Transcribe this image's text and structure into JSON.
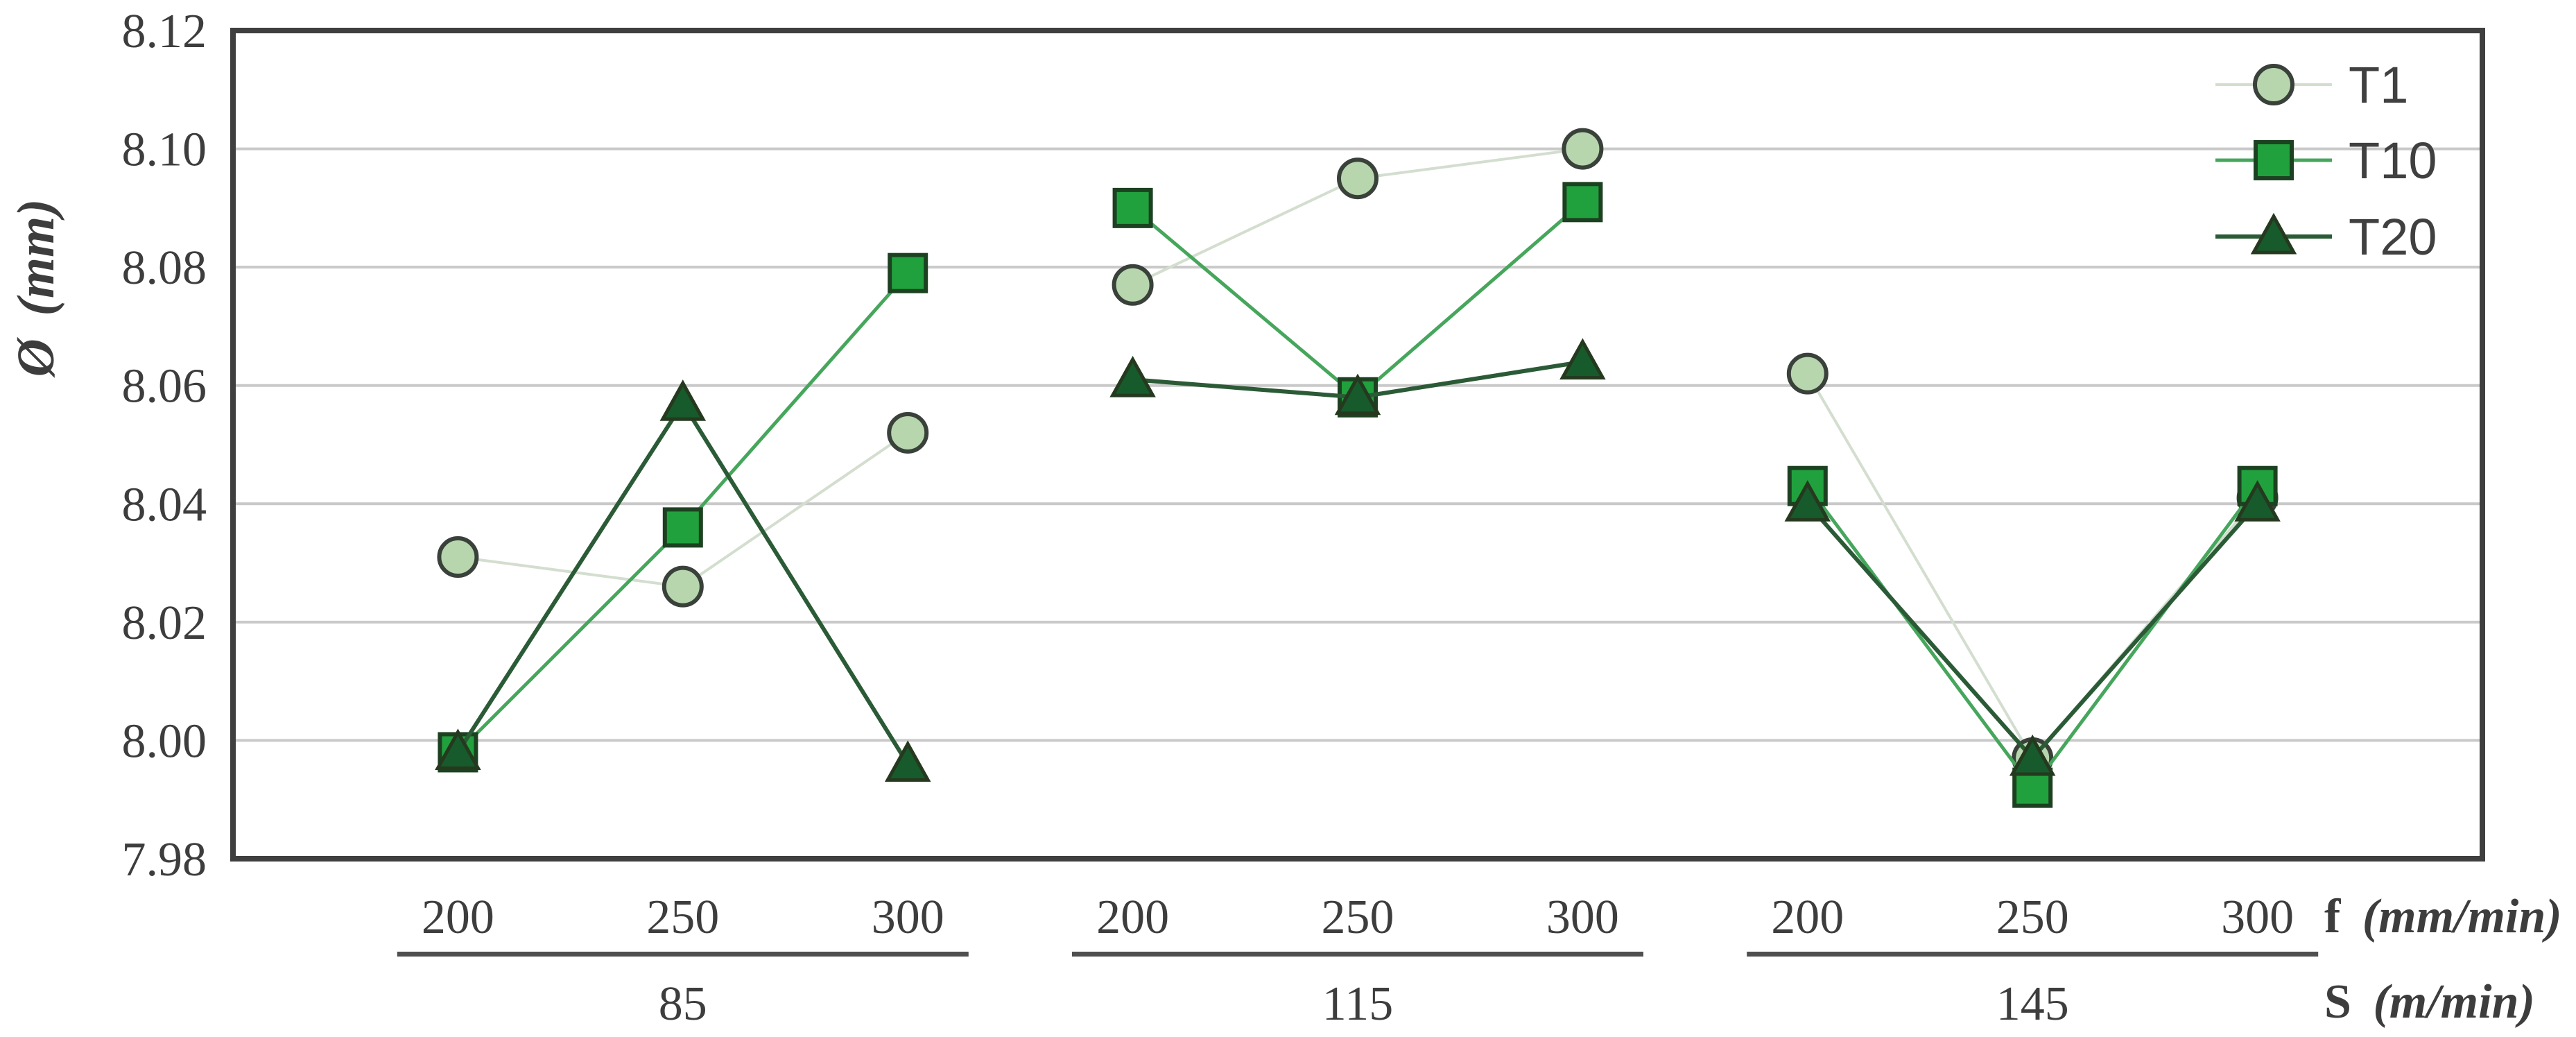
{
  "chart_data": {
    "type": "line",
    "title": "",
    "ylabel": {
      "symbol": "Ø",
      "unit": "(mm)"
    },
    "yaxis": {
      "min": 7.98,
      "max": 8.12,
      "tick_step": 0.02,
      "ticks": [
        "8.12",
        "8.10",
        "8.08",
        "8.06",
        "8.04",
        "8.02",
        "8.00",
        "7.98"
      ]
    },
    "xaxis": {
      "feed_title": {
        "symbol": "f",
        "unit": "(mm/min)"
      },
      "speed_title": {
        "symbol": "S",
        "unit": "(m/min)"
      },
      "groups": [
        {
          "speed": "85",
          "feeds": [
            "200",
            "250",
            "300"
          ]
        },
        {
          "speed": "115",
          "feeds": [
            "200",
            "250",
            "300"
          ]
        },
        {
          "speed": "145",
          "feeds": [
            "200",
            "250",
            "300"
          ]
        }
      ]
    },
    "grid": true,
    "legend_position": "top-right",
    "series": [
      {
        "name": "T1",
        "marker": "circle",
        "marker_fill": "#b7d6ae",
        "marker_stroke": "#39413a",
        "line_color": "#d3decf",
        "line_width": 4,
        "values": [
          8.031,
          8.026,
          8.052,
          8.077,
          8.095,
          8.1,
          8.062,
          7.997,
          8.041
        ]
      },
      {
        "name": "T10",
        "marker": "square",
        "marker_fill": "#21a13d",
        "marker_stroke": "#1c4121",
        "line_color": "#46a65c",
        "line_width": 5,
        "values": [
          7.998,
          8.036,
          8.079,
          8.09,
          8.058,
          8.091,
          8.043,
          7.992,
          8.043
        ]
      },
      {
        "name": "T20",
        "marker": "triangle",
        "marker_fill": "#175b2c",
        "marker_stroke": "#25391f",
        "line_color": "#2b5b36",
        "line_width": 6,
        "values": [
          7.998,
          8.057,
          7.996,
          8.061,
          8.058,
          8.064,
          8.04,
          7.997,
          8.04
        ]
      }
    ],
    "colors": {
      "plot_bg": "#ffffff",
      "gridline": "#c9c9c9",
      "plot_border": "#3f3f3f",
      "text": "#3d3d3d",
      "group_rule": "#4f4f4f",
      "legend_text": "#404040"
    }
  }
}
